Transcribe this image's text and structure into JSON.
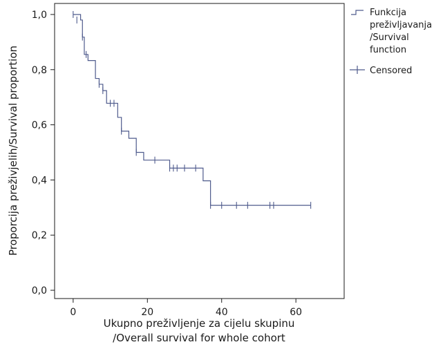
{
  "chart_data": {
    "type": "line",
    "subtype": "kaplan-meier",
    "title": "",
    "xlabel_line1": "Ukupno preživljenje za cijelu skupinu",
    "xlabel_line2": "/Overall survival for whole cohort",
    "ylabel": "Proporcija preživjelih/Survival proportion",
    "xlim": [
      -5,
      73
    ],
    "ylim": [
      -0.03,
      1.04
    ],
    "x_ticks": [
      0,
      20,
      40,
      60
    ],
    "x_tick_labels": [
      "0",
      "20",
      "40",
      "60"
    ],
    "y_ticks": [
      0.0,
      0.2,
      0.4,
      0.6,
      0.8,
      1.0
    ],
    "y_tick_labels": [
      "0,0",
      "0,2",
      "0,4",
      "0,6",
      "0,8",
      "1,0"
    ],
    "grid": false,
    "legend_position": "right-outside-top",
    "legend": [
      {
        "key": "survival",
        "lines": [
          "Funkcija",
          "preživljavanja",
          "/Survival",
          "function"
        ]
      },
      {
        "key": "censored",
        "lines": [
          "Censored"
        ]
      }
    ],
    "line_color": "#4e5a8c",
    "series": [
      {
        "name": "survival",
        "steps": [
          [
            0,
            1.0
          ],
          [
            2,
            0.98
          ],
          [
            2.5,
            0.918
          ],
          [
            3,
            0.855
          ],
          [
            4,
            0.833
          ],
          [
            6,
            0.768
          ],
          [
            7,
            0.747
          ],
          [
            8,
            0.724
          ],
          [
            9,
            0.678
          ],
          [
            12,
            0.627
          ],
          [
            13,
            0.577
          ],
          [
            15,
            0.551
          ],
          [
            17,
            0.5
          ],
          [
            19,
            0.472
          ],
          [
            26,
            0.443
          ],
          [
            34,
            0.443
          ],
          [
            35,
            0.397
          ],
          [
            37,
            0.308
          ],
          [
            64,
            0.308
          ]
        ]
      },
      {
        "name": "censored",
        "points": [
          [
            0,
            1.0
          ],
          [
            1,
            0.98
          ],
          [
            2.5,
            0.918
          ],
          [
            3.5,
            0.855
          ],
          [
            7,
            0.747
          ],
          [
            8,
            0.724
          ],
          [
            10,
            0.678
          ],
          [
            11,
            0.678
          ],
          [
            13,
            0.577
          ],
          [
            17,
            0.5
          ],
          [
            22,
            0.472
          ],
          [
            26,
            0.443
          ],
          [
            27,
            0.443
          ],
          [
            28,
            0.443
          ],
          [
            30,
            0.443
          ],
          [
            33,
            0.443
          ],
          [
            37,
            0.308
          ],
          [
            40,
            0.308
          ],
          [
            44,
            0.308
          ],
          [
            47,
            0.308
          ],
          [
            53,
            0.308
          ],
          [
            54,
            0.308
          ],
          [
            64,
            0.308
          ]
        ]
      }
    ]
  }
}
